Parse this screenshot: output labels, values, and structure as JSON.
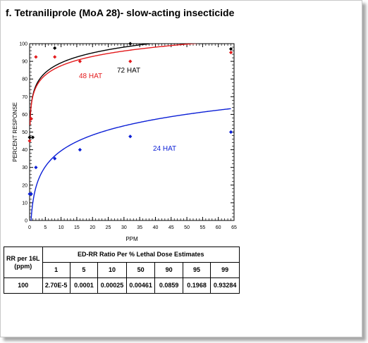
{
  "title": "f. Tetraniliprole (MoA 28)- slow-acting insecticide",
  "chart_data": {
    "type": "scatter",
    "xlabel": "PPM",
    "ylabel": "PERCENT  RESPONSE",
    "xlim": [
      0,
      65
    ],
    "ylim": [
      0,
      100
    ],
    "xticks": [
      0,
      5,
      10,
      15,
      20,
      25,
      30,
      35,
      40,
      45,
      50,
      55,
      60,
      65
    ],
    "yticks": [
      0,
      10,
      20,
      30,
      40,
      50,
      60,
      70,
      80,
      90,
      100
    ],
    "grid": false,
    "series": [
      {
        "name": "72 HAT",
        "color": "#000000",
        "points": [
          [
            0,
            47
          ],
          [
            0.5,
            57.5
          ],
          [
            1,
            47
          ],
          [
            8,
            97.5
          ],
          [
            32,
            100
          ],
          [
            64,
            97
          ]
        ],
        "fit_curve": {
          "a": 70.6,
          "b": 8.07
        }
      },
      {
        "name": "48 HAT",
        "color": "#e31a1c",
        "points": [
          [
            0,
            45
          ],
          [
            0.5,
            57.5
          ],
          [
            2,
            92.5
          ],
          [
            8,
            92.5
          ],
          [
            16,
            90
          ],
          [
            32,
            90
          ],
          [
            64,
            95
          ]
        ],
        "fit_curve": {
          "a": 70.0,
          "b": 7.6
        }
      },
      {
        "name": "24 HAT",
        "color": "#0b1fd6",
        "points": [
          [
            0,
            15
          ],
          [
            0.5,
            15
          ],
          [
            2,
            30
          ],
          [
            8,
            35
          ],
          [
            16,
            40
          ],
          [
            32,
            47.5
          ],
          [
            64,
            50
          ]
        ],
        "fit_curve": {
          "a": 9.8,
          "b": 12.85
        }
      }
    ]
  },
  "table": {
    "col_header_line1": "RR per 16L",
    "col_header_line2": "(ppm)",
    "group_header": "ED-RR  Ratio Per % Lethal Dose Estimates",
    "lethal_doses": [
      "1",
      "5",
      "10",
      "50",
      "90",
      "95",
      "99"
    ],
    "row": {
      "rr": "100",
      "values": [
        "2.70E-5",
        "0.0001",
        "0.00025",
        "0.00461",
        "0.0859",
        "0.1968",
        "0.93284"
      ]
    }
  }
}
